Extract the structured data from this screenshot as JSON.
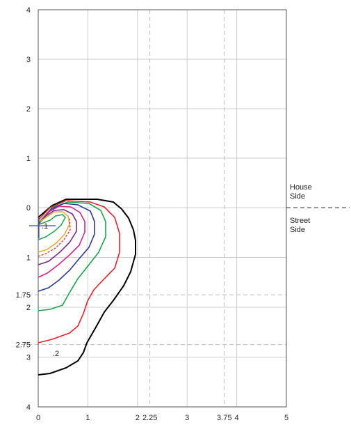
{
  "diagram": {
    "x_ticks": [
      {
        "value": 0,
        "label": "0"
      },
      {
        "value": 1,
        "label": "1"
      },
      {
        "value": 2,
        "label": "2"
      },
      {
        "value": 2.25,
        "label": "2.25"
      },
      {
        "value": 3,
        "label": "3"
      },
      {
        "value": 3.75,
        "label": "3.75"
      },
      {
        "value": 4,
        "label": "4"
      },
      {
        "value": 5,
        "label": "5"
      }
    ],
    "y_ticks_top": [
      {
        "value": 4,
        "label": "4"
      },
      {
        "value": 3,
        "label": "3"
      },
      {
        "value": 2,
        "label": "2"
      },
      {
        "value": 1,
        "label": "1"
      },
      {
        "value": 0,
        "label": "0"
      }
    ],
    "y_ticks_bottom": [
      {
        "value": 1,
        "label": "1"
      },
      {
        "value": 1.75,
        "label": "1.75"
      },
      {
        "value": 2,
        "label": "2"
      },
      {
        "value": 2.75,
        "label": "2.75"
      },
      {
        "value": 3,
        "label": "3"
      },
      {
        "value": 4,
        "label": "4"
      }
    ],
    "house_side_label": "House Side",
    "street_side_label": "Street Side",
    "contour_labels": [
      ".1",
      ".2"
    ],
    "dashed_x": [
      2.25,
      3.75
    ],
    "dashed_y_bottom": [
      1.75,
      2.75
    ],
    "colors": {
      "grid": "#cccccc",
      "dash": "#bbbbbb",
      "black": "#000000",
      "red": "#e8202a",
      "green": "#1aa34a",
      "blue": "#2b3a8f",
      "pink": "#d3258a",
      "purple": "#7a2a86",
      "orange": "#f5a623",
      "marker": "#3a4fb0"
    }
  }
}
